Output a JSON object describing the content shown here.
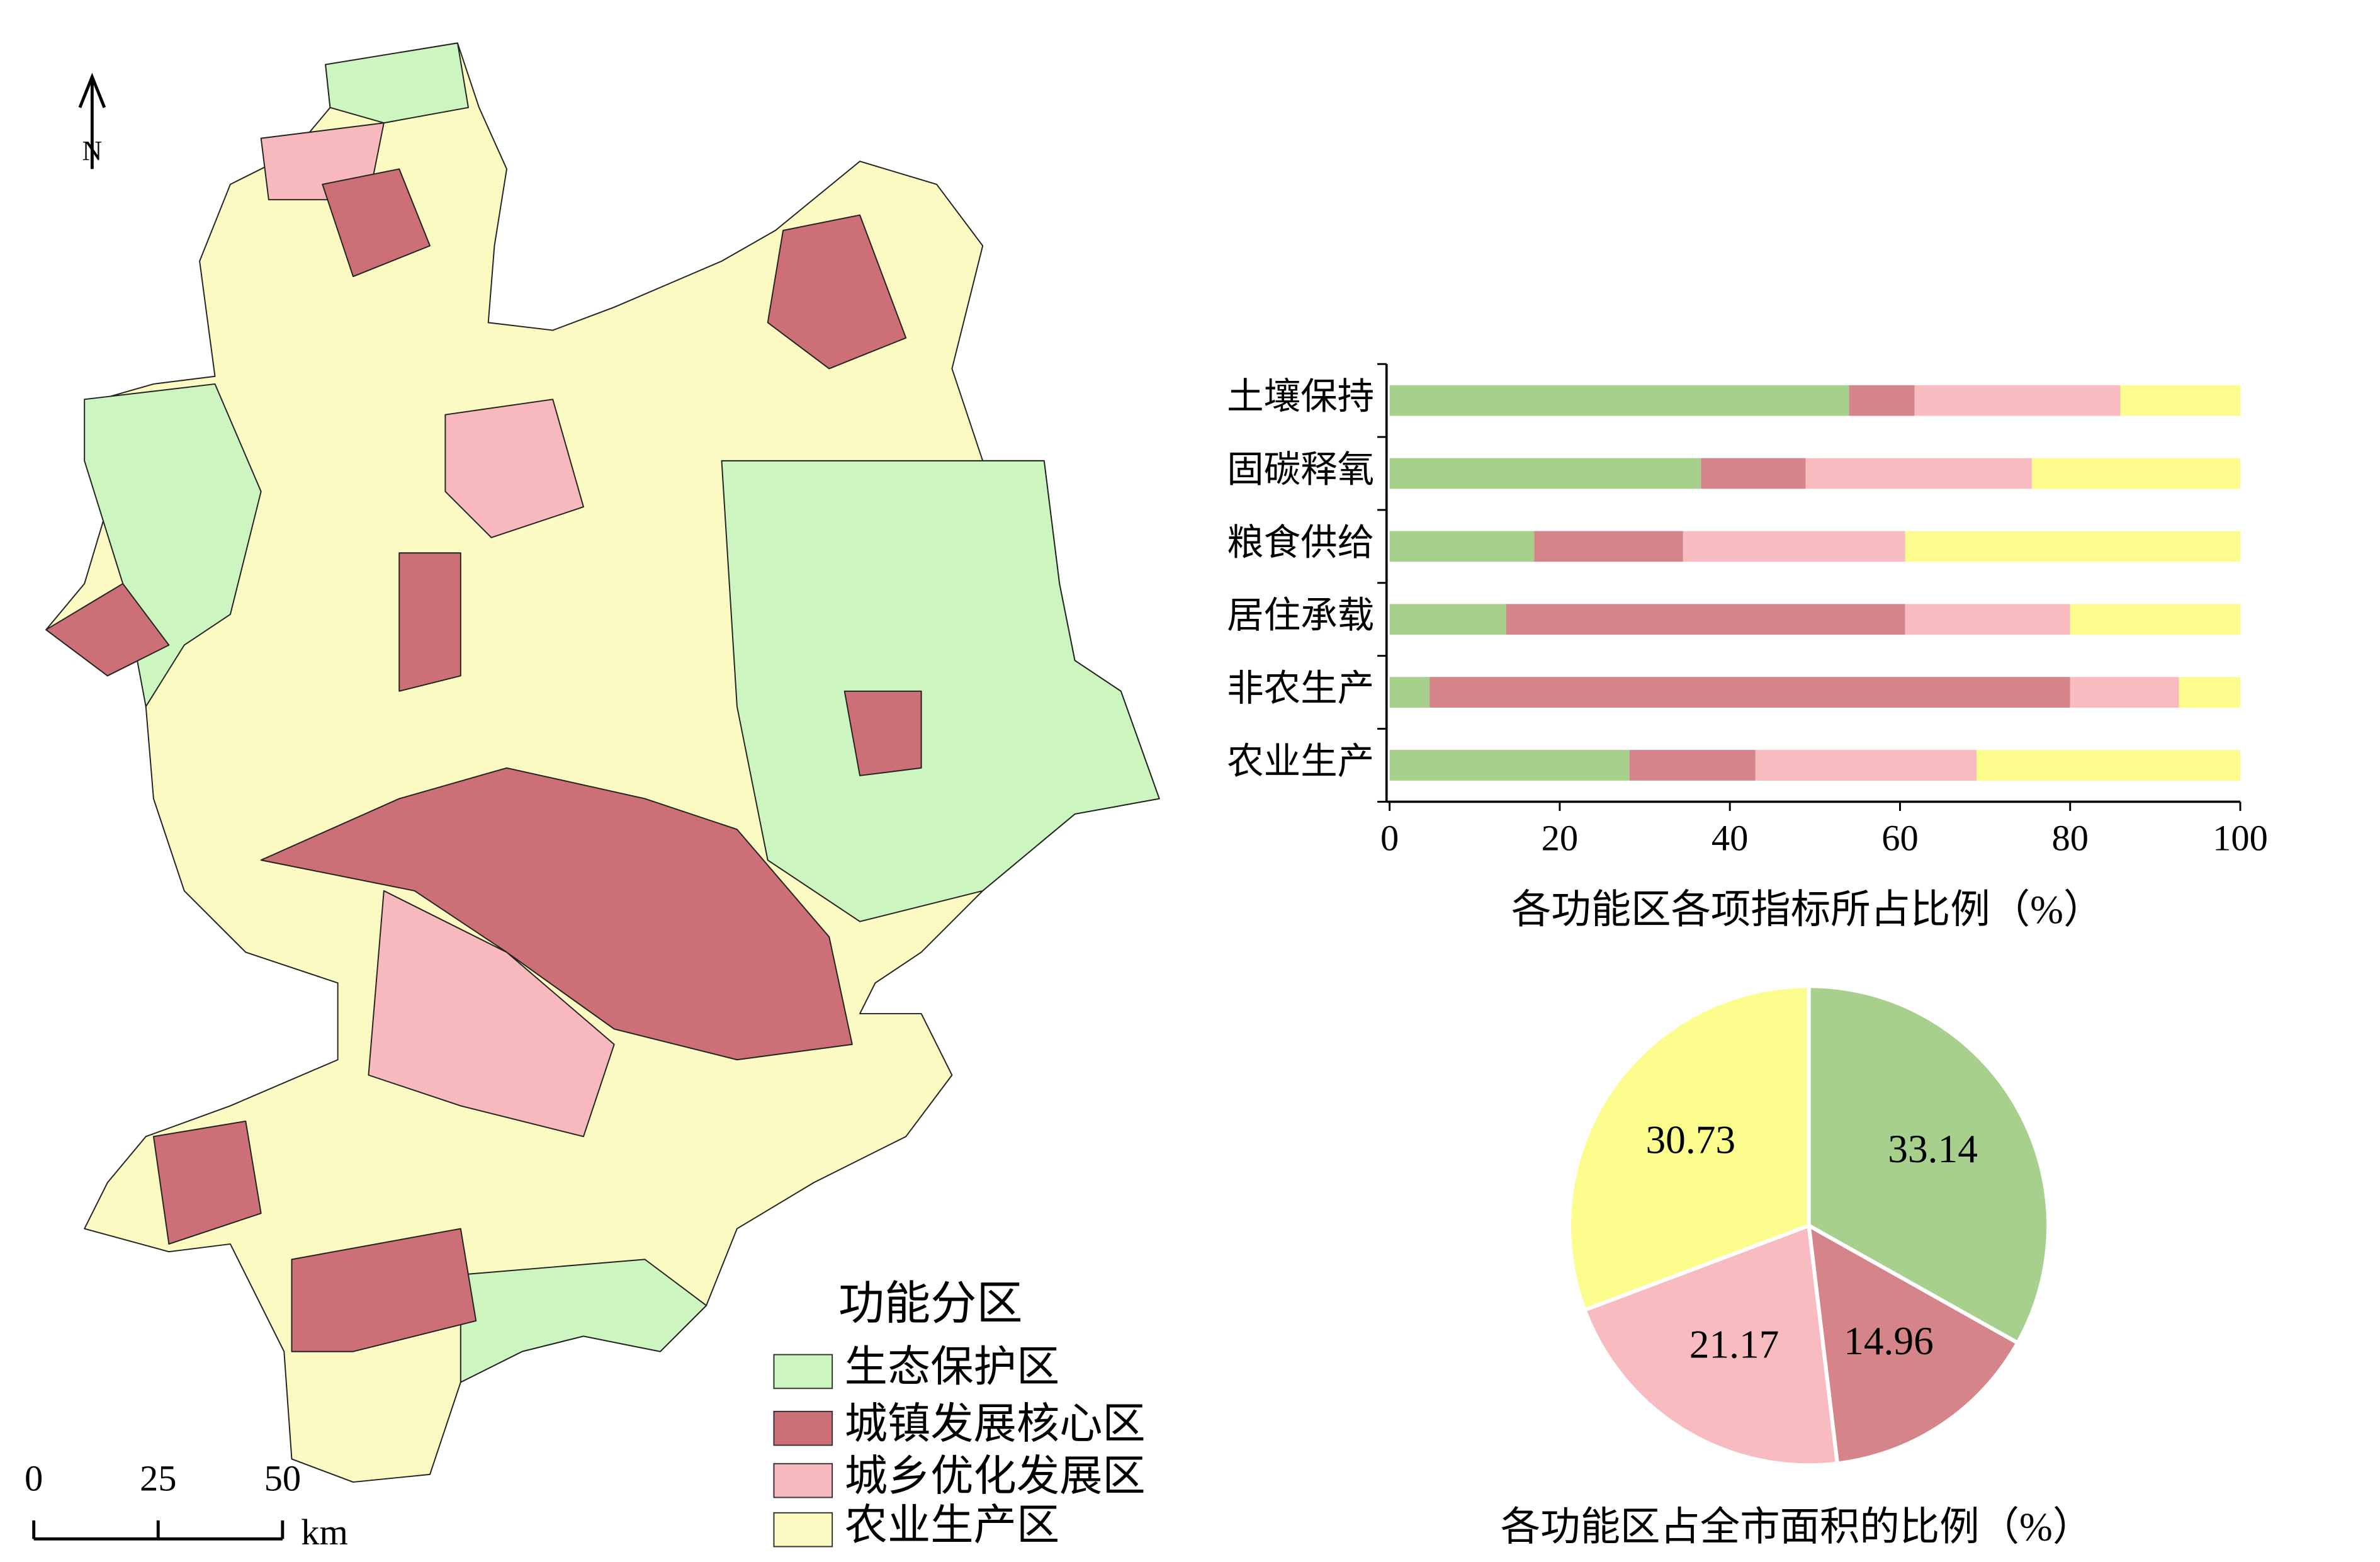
{
  "map": {
    "north": "N",
    "legend_title": "功能分区",
    "colors": [
      "#ccf5c0",
      "#cd6f76",
      "#f7b9bd",
      "#fafac2"
    ],
    "scale_labels": [
      "0",
      "25",
      "50"
    ],
    "scale_unit": "km"
  },
  "chart_data": [
    {
      "type": "bar",
      "orientation": "horizontal",
      "stacked": true,
      "categories": [
        "土壤保持",
        "固碳释氧",
        "粮食供给",
        "居住承载",
        "非农生产",
        "农业生产"
      ],
      "series": [
        {
          "name": "生态保护区",
          "color": "#a8d08d",
          "values": [
            54.0,
            36.6,
            17.0,
            13.7,
            4.7,
            28.2
          ]
        },
        {
          "name": "城镇发展核心区",
          "color": "#d5848a",
          "values": [
            7.7,
            12.3,
            17.5,
            46.9,
            75.3,
            14.8
          ]
        },
        {
          "name": "城乡优化发展区",
          "color": "#f8bcc0",
          "values": [
            24.2,
            26.6,
            26.1,
            19.4,
            12.8,
            26.0
          ]
        },
        {
          "name": "农业生产区",
          "color": "#fdfd8e",
          "values": [
            14.1,
            24.5,
            39.4,
            20.0,
            7.2,
            31.0
          ]
        }
      ],
      "xlim": [
        0,
        100
      ],
      "xticks": [
        0,
        20,
        40,
        60,
        80,
        100
      ],
      "xlabel": "各功能区各项指标所占比例（%）"
    },
    {
      "type": "pie",
      "values": [
        33.14,
        14.96,
        21.17,
        30.73
      ],
      "colors": [
        "#a8d08d",
        "#d5848a",
        "#f8bcc0",
        "#fdfd8e"
      ],
      "title": "各功能区占全市面积的比例（%）"
    }
  ]
}
